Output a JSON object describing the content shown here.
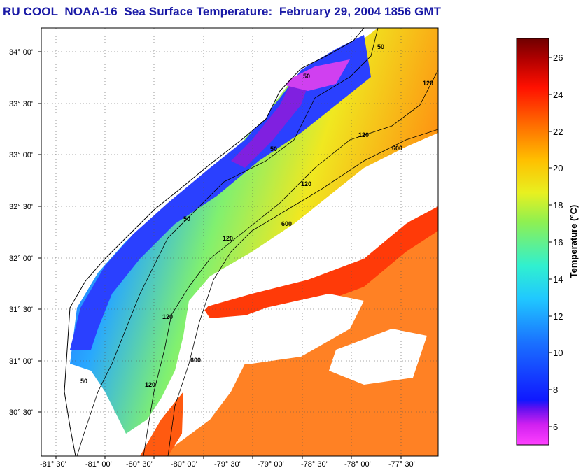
{
  "title": "RU COOL  NOAA-16  Sea Surface Temperature:  February 29, 2004 1856 GMT",
  "lat_labels": [
    "34° 00'",
    "33° 30'",
    "33° 00'",
    "32° 30'",
    "32° 00'",
    "31° 30'",
    "31° 00'",
    "30° 30'"
  ],
  "lon_labels": [
    "-81° 30'",
    "-81° 00'",
    "-80° 30'",
    "-80° 00'",
    "-79° 30'",
    "-79° 00'",
    "-78° 30'",
    "-78° 00'",
    "-77° 30'"
  ],
  "contour_labels": [
    "50",
    "50",
    "50",
    "50",
    "50",
    "120",
    "120",
    "120",
    "120",
    "120",
    "120",
    "600",
    "600",
    "600"
  ],
  "colorbar": {
    "title": "Temperature (°C)",
    "ticks": [
      "26",
      "24",
      "22",
      "20",
      "18",
      "16",
      "14",
      "12",
      "10",
      "8",
      "6"
    ],
    "range": [
      5,
      27
    ],
    "stops": [
      "#ff40ff",
      "#b010f0",
      "#3018f0",
      "#1040ff",
      "#1a90ff",
      "#20d0ff",
      "#30f0c0",
      "#b0f040",
      "#f0f020",
      "#ffb000",
      "#ff6000",
      "#ff1000",
      "#c00000",
      "#800000"
    ]
  },
  "colors": {
    "title": "#1a1aa6",
    "cool": "#2a40ff",
    "warm": "#ff6a10"
  }
}
